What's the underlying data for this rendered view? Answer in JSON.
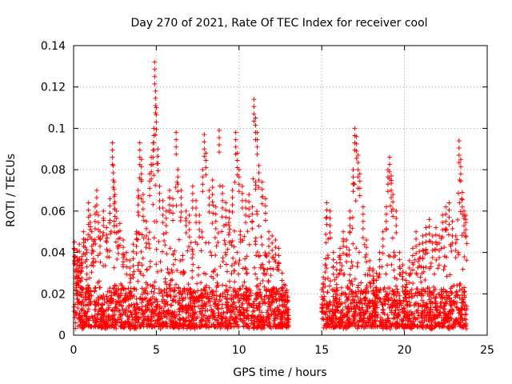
{
  "chart_data": {
    "type": "scatter",
    "title": "Day 270 of 2021, Rate Of TEC Index for receiver cool",
    "xlabel": "GPS time / hours",
    "ylabel": "ROTI / TECUs",
    "xlim": [
      0,
      25
    ],
    "ylim": [
      0,
      0.14
    ],
    "x_ticks": [
      0,
      5,
      10,
      15,
      20,
      25
    ],
    "y_ticks": [
      0,
      0.02,
      0.04,
      0.06,
      0.08,
      0.1,
      0.12,
      0.14
    ],
    "x_tick_labels": [
      "0",
      "5",
      "10",
      "15",
      "20",
      "25"
    ],
    "y_tick_labels": [
      "0",
      "0.02",
      "0.04",
      "0.06",
      "0.08",
      "0.1",
      "0.12",
      "0.14"
    ],
    "grid": true,
    "marker": "+",
    "color": "#ff0000",
    "data_gap_hours": [
      13.0,
      15.0
    ],
    "series": [
      {
        "x": [
          0.05,
          0.1,
          0.15,
          0.2,
          0.25,
          0.3,
          0.35,
          0.4,
          0.5,
          0.6,
          0.7,
          0.8,
          0.9,
          1.0,
          1.1,
          1.2,
          1.3,
          1.4,
          1.5,
          1.6,
          1.8,
          2.0,
          2.2,
          2.35,
          2.4,
          2.45,
          2.5,
          2.6,
          2.7,
          2.8,
          3.0,
          3.2,
          3.4,
          3.6,
          3.8,
          3.9,
          4.0,
          4.1,
          4.2,
          4.4,
          4.6,
          4.7,
          4.8,
          4.85,
          4.9,
          4.95,
          5.0,
          5.1,
          5.2,
          5.4,
          5.6,
          5.8,
          6.0,
          6.2,
          6.3,
          6.5,
          6.8,
          7.0,
          7.2,
          7.4,
          7.6,
          7.8,
          7.9,
          8.0,
          8.2,
          8.4,
          8.6,
          8.8,
          9.0,
          9.2,
          9.4,
          9.6,
          9.8,
          9.9,
          10.0,
          10.2,
          10.4,
          10.6,
          10.8,
          10.9,
          11.0,
          11.1,
          11.2,
          11.4,
          11.6,
          11.8,
          12.0,
          12.2,
          12.4,
          12.6,
          12.8,
          15.0,
          15.1,
          15.2,
          15.3,
          15.5,
          15.7,
          15.9,
          16.1,
          16.3,
          16.5,
          16.7,
          16.9,
          17.0,
          17.1,
          17.2,
          17.3,
          17.5,
          17.7,
          17.9,
          18.1,
          18.3,
          18.5,
          18.7,
          18.9,
          19.0,
          19.1,
          19.2,
          19.3,
          19.5,
          19.7,
          19.9,
          20.1,
          20.3,
          20.5,
          20.7,
          20.9,
          21.1,
          21.3,
          21.5,
          21.7,
          21.9,
          22.1,
          22.3,
          22.5,
          22.7,
          22.9,
          23.1,
          23.3,
          23.4,
          23.5,
          23.6,
          23.7
        ],
        "y": [
          0.045,
          0.038,
          0.032,
          0.041,
          0.028,
          0.036,
          0.044,
          0.03,
          0.038,
          0.05,
          0.046,
          0.04,
          0.064,
          0.058,
          0.05,
          0.044,
          0.062,
          0.07,
          0.058,
          0.05,
          0.06,
          0.052,
          0.066,
          0.093,
          0.082,
          0.074,
          0.068,
          0.06,
          0.05,
          0.054,
          0.046,
          0.04,
          0.036,
          0.044,
          0.05,
          0.07,
          0.093,
          0.085,
          0.068,
          0.055,
          0.078,
          0.086,
          0.093,
          0.1,
          0.132,
          0.118,
          0.11,
          0.09,
          0.072,
          0.065,
          0.06,
          0.07,
          0.066,
          0.098,
          0.08,
          0.07,
          0.06,
          0.058,
          0.072,
          0.065,
          0.058,
          0.08,
          0.097,
          0.088,
          0.07,
          0.075,
          0.062,
          0.099,
          0.072,
          0.064,
          0.06,
          0.07,
          0.098,
          0.088,
          0.08,
          0.072,
          0.065,
          0.068,
          0.062,
          0.114,
          0.105,
          0.098,
          0.082,
          0.074,
          0.066,
          0.05,
          0.048,
          0.046,
          0.042,
          0.03,
          0.024,
          0.022,
          0.028,
          0.034,
          0.064,
          0.06,
          0.04,
          0.035,
          0.042,
          0.05,
          0.046,
          0.06,
          0.08,
          0.1,
          0.096,
          0.087,
          0.078,
          0.062,
          0.046,
          0.036,
          0.032,
          0.03,
          0.04,
          0.05,
          0.062,
          0.08,
          0.086,
          0.077,
          0.068,
          0.06,
          0.04,
          0.034,
          0.03,
          0.036,
          0.042,
          0.05,
          0.044,
          0.048,
          0.052,
          0.056,
          0.048,
          0.052,
          0.048,
          0.058,
          0.062,
          0.064,
          0.055,
          0.048,
          0.094,
          0.085,
          0.069,
          0.06,
          0.058
        ]
      }
    ]
  }
}
